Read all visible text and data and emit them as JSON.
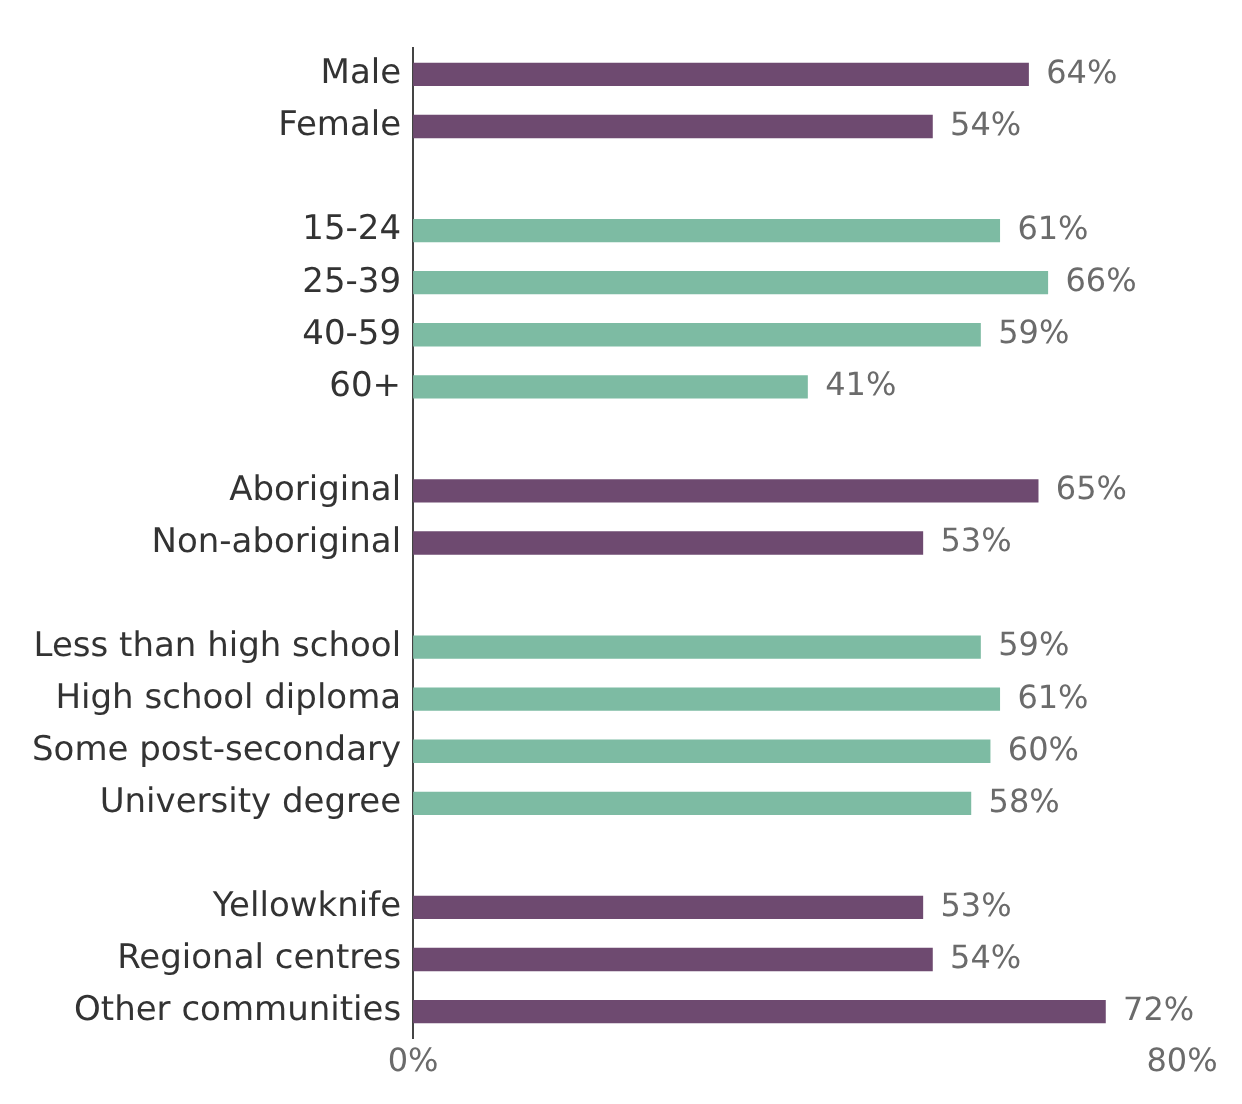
{
  "chart_data": {
    "type": "bar",
    "orientation": "horizontal",
    "categories": [
      "Male",
      "Female",
      null,
      "15-24",
      "25-39",
      "40-59",
      "60+",
      null,
      "Aboriginal",
      "Non-aboriginal",
      null,
      "Less than high school",
      "High school diploma",
      "Some post-secondary",
      "University degree",
      null,
      "Yellowknife",
      "Regional centres",
      "Other communities"
    ],
    "values": [
      64,
      54,
      null,
      61,
      66,
      59,
      41,
      null,
      65,
      53,
      null,
      59,
      61,
      60,
      58,
      null,
      53,
      54,
      72
    ],
    "colors": [
      "#6e4a70",
      "#6e4a70",
      null,
      "#7dbba3",
      "#7dbba3",
      "#7dbba3",
      "#7dbba3",
      null,
      "#6e4a70",
      "#6e4a70",
      null,
      "#7dbba3",
      "#7dbba3",
      "#7dbba3",
      "#7dbba3",
      null,
      "#6e4a70",
      "#6e4a70",
      "#6e4a70"
    ],
    "value_labels": [
      "64%",
      "54%",
      null,
      "61%",
      "66%",
      "59%",
      "41%",
      null,
      "65%",
      "53%",
      null,
      "59%",
      "61%",
      "60%",
      "58%",
      null,
      "53%",
      "54%",
      "72%"
    ],
    "xlim": [
      0,
      80
    ],
    "xticks": [
      {
        "value": 0,
        "label": "0%"
      },
      {
        "value": 80,
        "label": "80%"
      }
    ],
    "grid": false,
    "legend": false
  }
}
